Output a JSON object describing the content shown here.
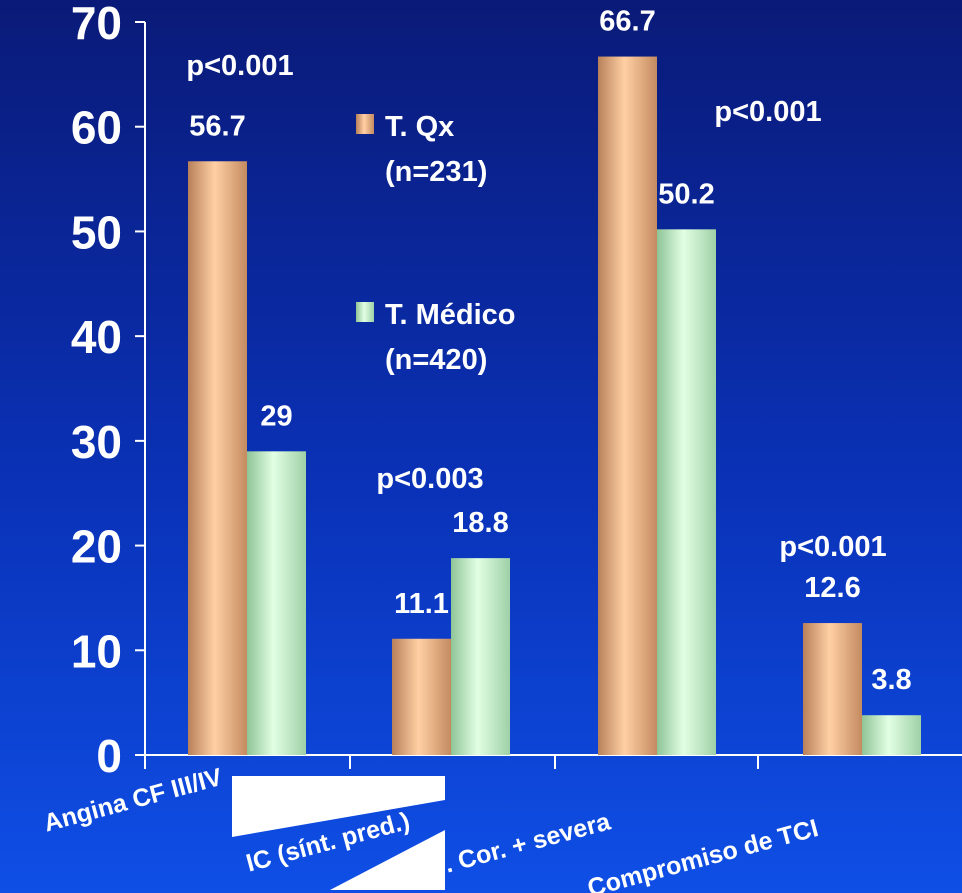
{
  "chart_data": {
    "type": "bar",
    "categories": [
      "Angina CF III/IV",
      "IC (sínt. pred.)",
      "Enf. Cor. + severa",
      "Compromiso de TCI"
    ],
    "series": [
      {
        "name": "T. Qx\n(n=231)",
        "color": "#f0b988",
        "values": [
          56.7,
          11.1,
          66.7,
          12.6
        ]
      },
      {
        "name": "T. Médico\n(n=420)",
        "color": "#bff0c4",
        "values": [
          29,
          18.8,
          50.2,
          3.8
        ]
      }
    ],
    "value_labels": [
      [
        "56.7",
        "29"
      ],
      [
        "11.1",
        "18.8"
      ],
      [
        "66.7",
        "50.2"
      ],
      [
        "12.6",
        "3.8"
      ]
    ],
    "p_values": [
      "p<0.001",
      "p<0.003",
      "p<0.001",
      "p<0.001"
    ],
    "y_ticks": [
      "0",
      "10",
      "20",
      "30",
      "40",
      "50",
      "60",
      "70"
    ],
    "ylim": [
      0,
      70
    ],
    "legend_labels": [
      [
        "T. Qx",
        "(n=231)"
      ],
      [
        "T. Médico",
        "(n=420)"
      ]
    ],
    "legend_position": "center-left",
    "grid": false,
    "title": "",
    "xlabel": "",
    "ylabel": ""
  }
}
